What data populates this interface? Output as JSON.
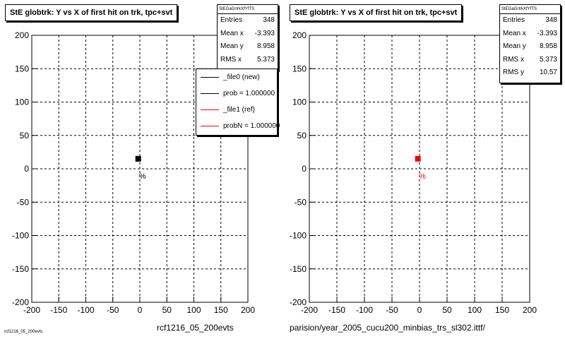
{
  "chart_data": [
    {
      "type": "scatter",
      "title": "StE globtrk: Y vs X of first hit on trk, tpc+svt",
      "xlim": [
        -200,
        200
      ],
      "ylim": [
        -200,
        200
      ],
      "xticks": [
        -200,
        -150,
        -100,
        -50,
        0,
        50,
        100,
        150,
        200
      ],
      "yticks": [
        -200,
        -150,
        -100,
        -50,
        0,
        50,
        100,
        150,
        200
      ],
      "grid": true,
      "marker_color": "#000000",
      "cluster": {
        "x": -3,
        "y": 15
      },
      "annotation": {
        "text": "%",
        "x": 5,
        "y": -15
      },
      "stats": {
        "header": "StEGaGrIrkXfYfTS",
        "rows": [
          {
            "label": "Entries",
            "value": "348"
          },
          {
            "label": "Mean x",
            "value": "-3.393"
          },
          {
            "label": "Mean y",
            "value": "8.958"
          },
          {
            "label": "RMS x",
            "value": "5.373"
          }
        ]
      },
      "legend": [
        {
          "label": "_file0 (new)",
          "color": "#000000"
        },
        {
          "label": "prob = 1.000000",
          "color": "#000000"
        },
        {
          "label": "_file1 (ref)",
          "color": "#ff0000"
        },
        {
          "label": "probN = 1.000000",
          "color": "#ff0000"
        }
      ],
      "footer": "rcf1216_05_200evts"
    },
    {
      "type": "scatter",
      "title": "StE globtrk: Y vs X of first hit on trk, tpc+svt",
      "xlim": [
        -200,
        200
      ],
      "ylim": [
        -200,
        200
      ],
      "xticks": [
        -200,
        -150,
        -100,
        -50,
        0,
        50,
        100,
        150,
        200
      ],
      "yticks": [
        -200,
        -150,
        -100,
        -50,
        0,
        50,
        100,
        150,
        200
      ],
      "grid": true,
      "marker_color": "#ff0000",
      "cluster": {
        "x": -3,
        "y": 15
      },
      "annotation": {
        "text": "%",
        "x": 5,
        "y": -15
      },
      "stats": {
        "header": "StEGaGrIrkXfYfTS",
        "rows": [
          {
            "label": "Entries",
            "value": "348"
          },
          {
            "label": "Mean x",
            "value": "-3.393"
          },
          {
            "label": "Mean y",
            "value": "8.958"
          },
          {
            "label": "RMS x",
            "value": "5.373"
          },
          {
            "label": "RMS y",
            "value": "10.57"
          }
        ]
      },
      "footer": "parision/year_2005_cucu200_minbias_trs_sl302.ittf/"
    }
  ],
  "corner_note": "rcf1216_05_200evts"
}
